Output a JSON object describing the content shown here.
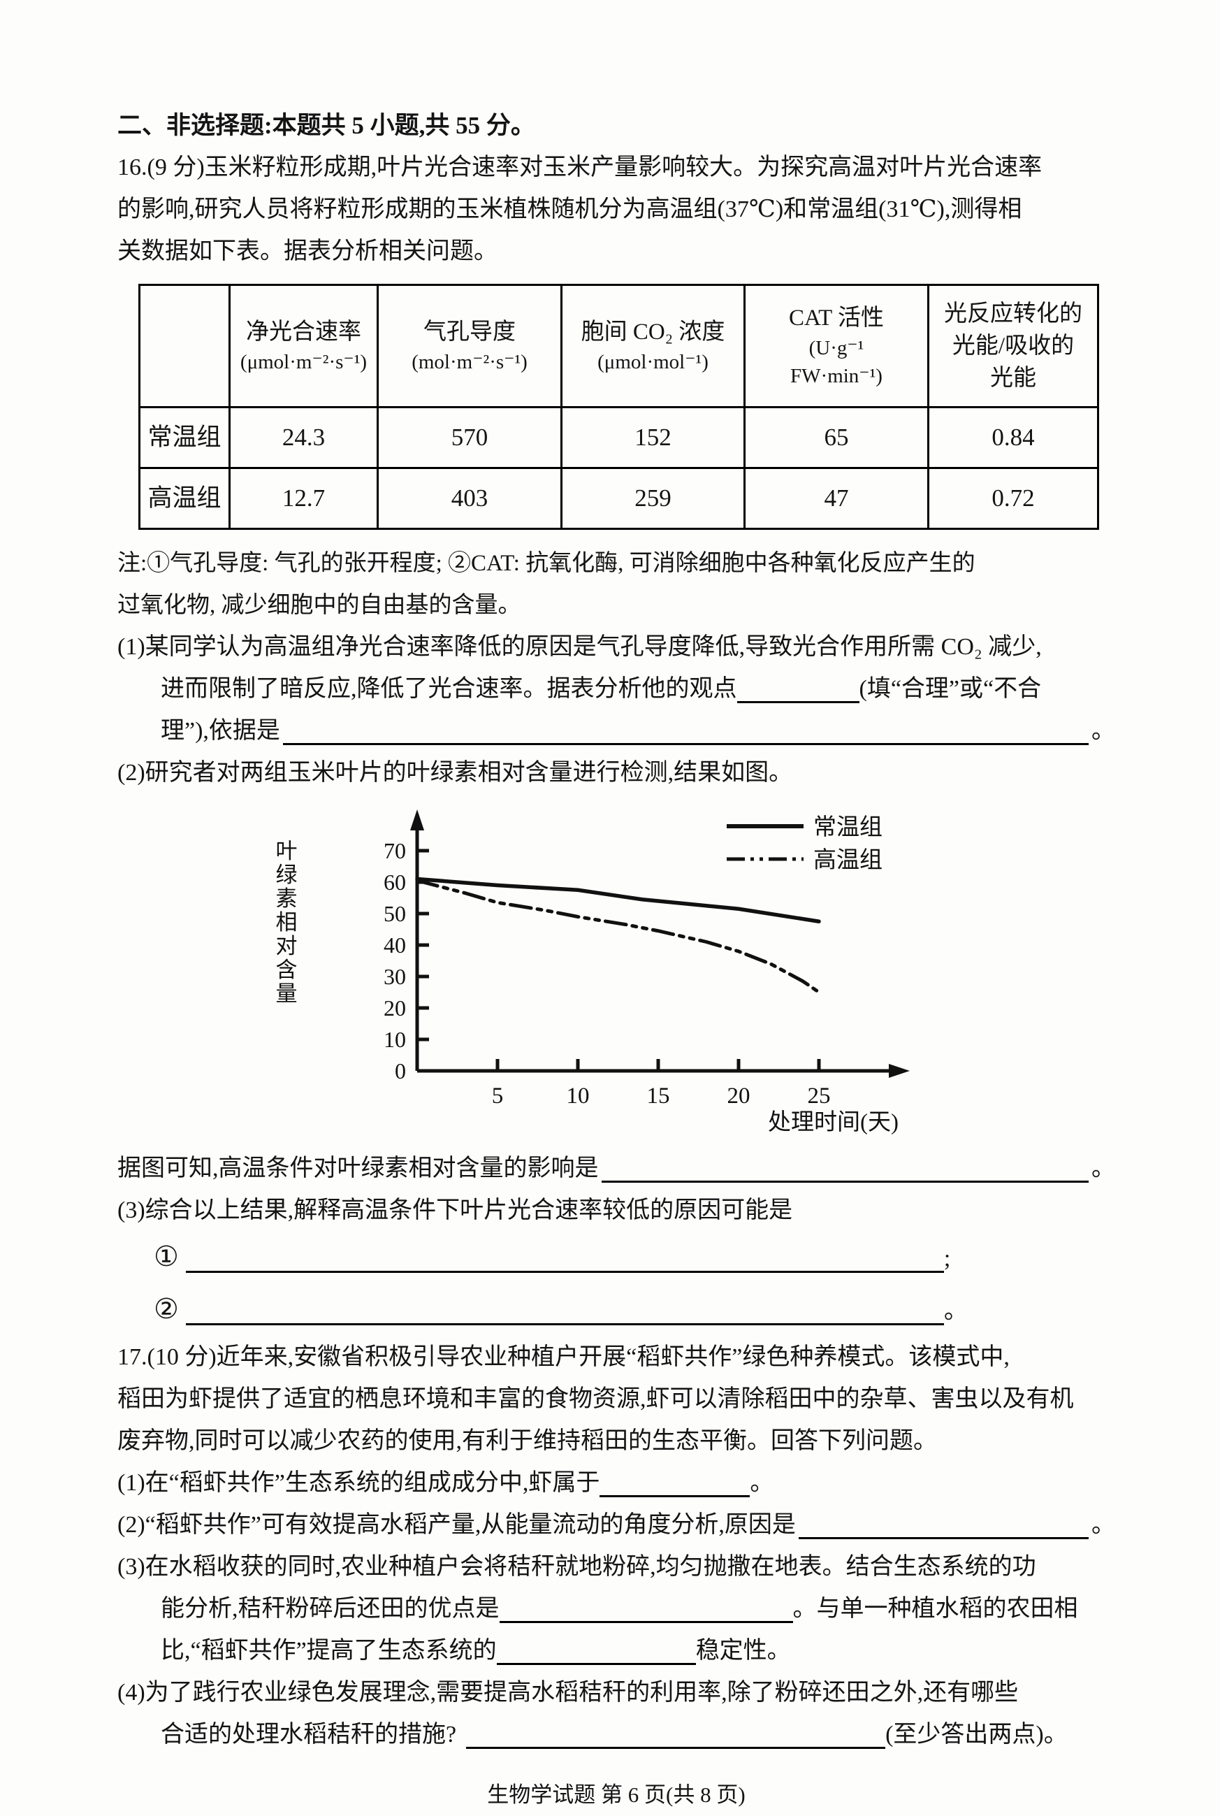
{
  "header": {
    "section_title": "二、非选择题:本题共 5 小题,共 55 分。"
  },
  "q16": {
    "intro": [
      "16.(9 分)玉米籽粒形成期,叶片光合速率对玉米产量影响较大。为探究高温对叶片光合速率",
      "的影响,研究人员将籽粒形成期的玉米植株随机分为高温组(37℃)和常温组(31℃),测得相",
      "关数据如下表。据表分析相关问题。"
    ],
    "table": {
      "columns": [
        {
          "name": "净光合速率",
          "unit": "(μmol·m⁻²·s⁻¹)"
        },
        {
          "name": "气孔导度",
          "unit": "(mol·m⁻²·s⁻¹)"
        },
        {
          "name": "胞间 CO₂ 浓度",
          "unit": "(μmol·mol⁻¹)"
        },
        {
          "name": "CAT 活性",
          "unit": "(U·g⁻¹",
          "unit2": "FW·min⁻¹)"
        },
        {
          "name": "光反应转化的",
          "name2": "光能/吸收的",
          "name3": "光能"
        }
      ],
      "rows": [
        {
          "label": "常温组",
          "values": [
            "24.3",
            "570",
            "152",
            "65",
            "0.84"
          ]
        },
        {
          "label": "高温组",
          "values": [
            "12.7",
            "403",
            "259",
            "47",
            "0.72"
          ]
        }
      ]
    },
    "note": [
      "注:①气孔导度: 气孔的张开程度; ②CAT: 抗氧化酶, 可消除细胞中各种氧化反应产生的",
      "过氧化物, 减少细胞中的自由基的含量。"
    ],
    "part1": {
      "line1": "(1)某同学认为高温组净光合速率降低的原因是气孔导度降低,导致光合作用所需 CO₂ 减少,",
      "line2_pre": "进而限制了暗反应,降低了光合速率。据表分析他的观点",
      "line2_post": "(填“合理”或“不合",
      "line3_pre": "理”),依据是",
      "line3_end": "。"
    },
    "part2": "(2)研究者对两组玉米叶片的叶绿素相对含量进行检测,结果如图。",
    "after_chart_pre": "据图可知,高温条件对叶绿素相对含量的影响是",
    "after_chart_end": "。",
    "part3": "(3)综合以上结果,解释高温条件下叶片光合速率较低的原因可能是",
    "item1_num": "①",
    "item1_end": ";",
    "item2_num": "②",
    "item2_end": "。"
  },
  "chart_data": {
    "type": "line",
    "title": "",
    "xlabel": "处理时间(天)",
    "ylabel": "叶绿素相对含量",
    "xlim": [
      0,
      30
    ],
    "ylim": [
      0,
      70
    ],
    "xticks": [
      5,
      10,
      15,
      20,
      25
    ],
    "yticks": [
      0,
      10,
      20,
      30,
      40,
      50,
      60,
      70
    ],
    "grid": false,
    "legend_position": "top-right",
    "series": [
      {
        "name": "常温组",
        "style": "solid",
        "x": [
          0,
          5,
          10,
          14,
          17,
          20,
          25
        ],
        "y": [
          61,
          59,
          57.5,
          54.5,
          53,
          51.5,
          47.5
        ]
      },
      {
        "name": "高温组",
        "style": "dash-dot-dot",
        "x": [
          0,
          3,
          5,
          8,
          10,
          13,
          15,
          18,
          20,
          22,
          24,
          25
        ],
        "y": [
          60.5,
          56.5,
          53.5,
          51,
          49,
          46.5,
          44.5,
          41,
          38,
          34,
          28.5,
          25
        ]
      }
    ]
  },
  "q17": {
    "intro": [
      "17.(10 分)近年来,安徽省积极引导农业种植户开展“稻虾共作”绿色种养模式。该模式中,",
      "稻田为虾提供了适宜的栖息环境和丰富的食物资源,虾可以清除稻田中的杂草、害虫以及有机",
      "废弃物,同时可以减少农药的使用,有利于维持稻田的生态平衡。回答下列问题。"
    ],
    "part1_pre": "(1)在“稻虾共作”生态系统的组成成分中,虾属于",
    "part1_end": "。",
    "part2_pre": "(2)“稻虾共作”可有效提高水稻产量,从能量流动的角度分析,原因是",
    "part2_end": "。",
    "part3": {
      "line1": "(3)在水稻收获的同时,农业种植户会将秸秆就地粉碎,均匀抛撒在地表。结合生态系统的功",
      "line2_pre": "能分析,秸秆粉碎后还田的优点是",
      "line2_post": "。与单一种植水稻的农田相",
      "line3_pre": "比,“稻虾共作”提高了生态系统的",
      "line3_post": "稳定性。"
    },
    "part4": {
      "line1": "(4)为了践行农业绿色发展理念,需要提高水稻秸秆的利用率,除了粉碎还田之外,还有哪些",
      "line2_pre": "合适的处理水稻秸秆的措施?",
      "line2_post": "(至少答出两点)。"
    }
  },
  "footer": {
    "text": "生物学试题   第 6 页(共 8 页)"
  }
}
